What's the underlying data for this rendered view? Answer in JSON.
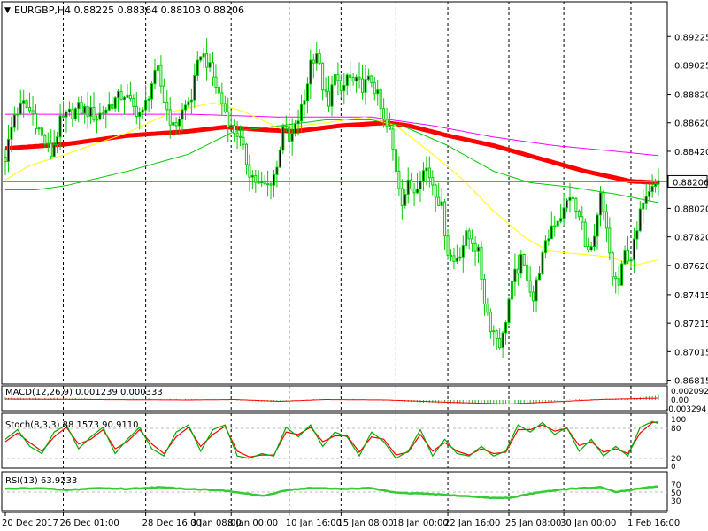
{
  "chart_data": {
    "type": "candlestick",
    "symbol_header": {
      "triangle": "▼",
      "text": "EURGBP,H4  0.88225 0.88364 0.88103 0.88206"
    },
    "price_axis": {
      "ylim": [
        0.868,
        0.8945
      ],
      "tick_labels": [
        "0.89225",
        "0.89025",
        "0.88820",
        "0.88620",
        "0.88420",
        "0.88020",
        "0.87820",
        "0.87620",
        "0.87415",
        "0.87215",
        "0.87015",
        "0.86815"
      ],
      "tick_values": [
        0.89225,
        0.89025,
        0.8882,
        0.8862,
        0.8842,
        0.8802,
        0.8782,
        0.8762,
        0.87415,
        0.87215,
        0.87015,
        0.86815
      ],
      "current_price_label": "0.88206",
      "current_price": 0.88206
    },
    "x_axis": {
      "bar_count": 215,
      "date_labels": [
        {
          "label": "20 Dec 2017",
          "bar": 0
        },
        {
          "label": "26 Dec 01:00",
          "bar": 19
        },
        {
          "label": "28 Dec 16:00",
          "bar": 46
        },
        {
          "label": "3 Jan 08:00",
          "bar": 62
        },
        {
          "label": "8 Jan 00:00",
          "bar": 74
        },
        {
          "label": "10 Jan 16:00",
          "bar": 93
        },
        {
          "label": "15 Jan 08:00",
          "bar": 110
        },
        {
          "label": "18 Jan 00:00",
          "bar": 128
        },
        {
          "label": "22 Jan 16:00",
          "bar": 145
        },
        {
          "label": "25 Jan 08:00",
          "bar": 165
        },
        {
          "label": "30 Jan 00:00",
          "bar": 183
        },
        {
          "label": "1 Feb 16:00",
          "bar": 205
        }
      ],
      "period_separators": [
        19,
        46,
        74,
        93,
        110,
        128,
        145,
        165,
        183,
        205
      ]
    },
    "price_anchors": [
      [
        0,
        0.8838
      ],
      [
        3,
        0.8868
      ],
      [
        6,
        0.8875
      ],
      [
        9,
        0.8868
      ],
      [
        12,
        0.8852
      ],
      [
        15,
        0.884
      ],
      [
        18,
        0.8862
      ],
      [
        21,
        0.8868
      ],
      [
        24,
        0.8872
      ],
      [
        27,
        0.887
      ],
      [
        30,
        0.8866
      ],
      [
        33,
        0.8872
      ],
      [
        36,
        0.8878
      ],
      [
        39,
        0.8882
      ],
      [
        42,
        0.8872
      ],
      [
        45,
        0.8868
      ],
      [
        48,
        0.889
      ],
      [
        50,
        0.8898
      ],
      [
        52,
        0.8878
      ],
      [
        55,
        0.8858
      ],
      [
        58,
        0.887
      ],
      [
        61,
        0.888
      ],
      [
        64,
        0.8912
      ],
      [
        66,
        0.8905
      ],
      [
        69,
        0.8888
      ],
      [
        72,
        0.887
      ],
      [
        74,
        0.8858
      ],
      [
        76,
        0.8855
      ],
      [
        78,
        0.8842
      ],
      [
        80,
        0.8828
      ],
      [
        83,
        0.8818
      ],
      [
        86,
        0.8818
      ],
      [
        89,
        0.883
      ],
      [
        91,
        0.8862
      ],
      [
        93,
        0.8848
      ],
      [
        95,
        0.8858
      ],
      [
        98,
        0.8878
      ],
      [
        100,
        0.8905
      ],
      [
        102,
        0.8912
      ],
      [
        104,
        0.8888
      ],
      [
        106,
        0.8872
      ],
      [
        108,
        0.89
      ],
      [
        110,
        0.888
      ],
      [
        112,
        0.8895
      ],
      [
        114,
        0.889
      ],
      [
        117,
        0.8888
      ],
      [
        120,
        0.8892
      ],
      [
        122,
        0.888
      ],
      [
        124,
        0.8862
      ],
      [
        126,
        0.8855
      ],
      [
        128,
        0.883
      ],
      [
        130,
        0.8808
      ],
      [
        132,
        0.8818
      ],
      [
        134,
        0.8815
      ],
      [
        136,
        0.8826
      ],
      [
        138,
        0.883
      ],
      [
        140,
        0.882
      ],
      [
        143,
        0.8802
      ],
      [
        145,
        0.8772
      ],
      [
        147,
        0.8765
      ],
      [
        149,
        0.8772
      ],
      [
        151,
        0.8782
      ],
      [
        153,
        0.878
      ],
      [
        155,
        0.877
      ],
      [
        157,
        0.8738
      ],
      [
        159,
        0.872
      ],
      [
        161,
        0.8712
      ],
      [
        162,
        0.8708
      ],
      [
        163,
        0.8712
      ],
      [
        165,
        0.8738
      ],
      [
        167,
        0.8755
      ],
      [
        169,
        0.8765
      ],
      [
        171,
        0.8755
      ],
      [
        173,
        0.8738
      ],
      [
        175,
        0.876
      ],
      [
        177,
        0.8775
      ],
      [
        179,
        0.879
      ],
      [
        181,
        0.8795
      ],
      [
        183,
        0.88
      ],
      [
        185,
        0.8812
      ],
      [
        187,
        0.88
      ],
      [
        189,
        0.879
      ],
      [
        191,
        0.877
      ],
      [
        193,
        0.8778
      ],
      [
        195,
        0.881
      ],
      [
        197,
        0.8785
      ],
      [
        199,
        0.8755
      ],
      [
        201,
        0.8748
      ],
      [
        203,
        0.877
      ],
      [
        205,
        0.8768
      ],
      [
        207,
        0.8785
      ],
      [
        209,
        0.881
      ],
      [
        211,
        0.8818
      ],
      [
        212,
        0.8822
      ],
      [
        214,
        0.8821
      ]
    ],
    "moving_averages": [
      {
        "name": "MA red (bold)",
        "color": "#ff0000",
        "width": 5,
        "points": [
          [
            0,
            0.8844
          ],
          [
            20,
            0.8847
          ],
          [
            40,
            0.8853
          ],
          [
            60,
            0.8856
          ],
          [
            72,
            0.8859
          ],
          [
            85,
            0.8857
          ],
          [
            95,
            0.8856
          ],
          [
            110,
            0.886
          ],
          [
            125,
            0.8862
          ],
          [
            132,
            0.886
          ],
          [
            145,
            0.8853
          ],
          [
            160,
            0.8846
          ],
          [
            175,
            0.8837
          ],
          [
            190,
            0.8828
          ],
          [
            205,
            0.8821
          ],
          [
            214,
            0.882
          ]
        ]
      },
      {
        "name": "MA magenta",
        "color": "#ff00ff",
        "width": 1,
        "points": [
          [
            0,
            0.8868
          ],
          [
            30,
            0.8868
          ],
          [
            60,
            0.8868
          ],
          [
            90,
            0.8866
          ],
          [
            120,
            0.8866
          ],
          [
            140,
            0.886
          ],
          [
            160,
            0.8852
          ],
          [
            180,
            0.8846
          ],
          [
            200,
            0.8842
          ],
          [
            214,
            0.8839
          ]
        ]
      },
      {
        "name": "MA green",
        "color": "#00cc00",
        "width": 1,
        "points": [
          [
            0,
            0.8815
          ],
          [
            10,
            0.8815
          ],
          [
            20,
            0.8818
          ],
          [
            40,
            0.8828
          ],
          [
            60,
            0.884
          ],
          [
            75,
            0.8856
          ],
          [
            90,
            0.886
          ],
          [
            105,
            0.8864
          ],
          [
            120,
            0.8864
          ],
          [
            130,
            0.886
          ],
          [
            145,
            0.8846
          ],
          [
            160,
            0.8828
          ],
          [
            172,
            0.882
          ],
          [
            185,
            0.8817
          ],
          [
            200,
            0.8812
          ],
          [
            214,
            0.8806
          ]
        ]
      },
      {
        "name": "MA yellow",
        "color": "#ffff00",
        "width": 1,
        "points": [
          [
            0,
            0.8822
          ],
          [
            8,
            0.8832
          ],
          [
            20,
            0.884
          ],
          [
            40,
            0.8855
          ],
          [
            55,
            0.887
          ],
          [
            68,
            0.8876
          ],
          [
            78,
            0.887
          ],
          [
            90,
            0.8858
          ],
          [
            105,
            0.8862
          ],
          [
            118,
            0.8866
          ],
          [
            128,
            0.886
          ],
          [
            140,
            0.884
          ],
          [
            150,
            0.8822
          ],
          [
            160,
            0.88
          ],
          [
            170,
            0.8782
          ],
          [
            178,
            0.8772
          ],
          [
            188,
            0.877
          ],
          [
            198,
            0.8768
          ],
          [
            206,
            0.8762
          ],
          [
            214,
            0.8766
          ]
        ]
      }
    ],
    "macd": {
      "label": "MACD(12,26,9) 0.001239 0.000333",
      "right_labels": [
        "0.002092",
        "0.00",
        "-0.003294"
      ],
      "hist_anchors": [
        [
          0,
          0.25
        ],
        [
          15,
          0.2
        ],
        [
          30,
          0.15
        ],
        [
          50,
          0.1
        ],
        [
          70,
          0.05
        ],
        [
          85,
          -0.2
        ],
        [
          100,
          0.05
        ],
        [
          115,
          0.1
        ],
        [
          125,
          -0.05
        ],
        [
          140,
          -0.3
        ],
        [
          155,
          -0.45
        ],
        [
          165,
          -0.55
        ],
        [
          175,
          -0.3
        ],
        [
          185,
          0.05
        ],
        [
          195,
          0.1
        ],
        [
          205,
          0.15
        ],
        [
          214,
          0.6
        ]
      ],
      "signal_anchors": [
        [
          0,
          0.1
        ],
        [
          30,
          0.05
        ],
        [
          60,
          0.0
        ],
        [
          75,
          0.05
        ],
        [
          90,
          -0.15
        ],
        [
          105,
          0.05
        ],
        [
          125,
          0.0
        ],
        [
          145,
          -0.25
        ],
        [
          165,
          -0.45
        ],
        [
          180,
          -0.2
        ],
        [
          195,
          0.05
        ],
        [
          214,
          0.2
        ]
      ]
    },
    "stochastic": {
      "label": "Stoch(8,3,3) 88.1573 90.9110",
      "right_labels": [
        "100",
        "80",
        "20",
        "0"
      ],
      "levels": [
        80,
        20
      ],
      "k_anchors": [
        [
          0,
          55
        ],
        [
          4,
          75
        ],
        [
          8,
          40
        ],
        [
          12,
          25
        ],
        [
          16,
          70
        ],
        [
          20,
          85
        ],
        [
          24,
          35
        ],
        [
          28,
          60
        ],
        [
          32,
          80
        ],
        [
          36,
          25
        ],
        [
          40,
          55
        ],
        [
          44,
          80
        ],
        [
          48,
          35
        ],
        [
          52,
          20
        ],
        [
          56,
          70
        ],
        [
          60,
          85
        ],
        [
          64,
          30
        ],
        [
          68,
          75
        ],
        [
          72,
          85
        ],
        [
          76,
          20
        ],
        [
          80,
          15
        ],
        [
          84,
          25
        ],
        [
          88,
          20
        ],
        [
          92,
          80
        ],
        [
          96,
          60
        ],
        [
          100,
          85
        ],
        [
          104,
          40
        ],
        [
          108,
          70
        ],
        [
          112,
          60
        ],
        [
          116,
          20
        ],
        [
          120,
          70
        ],
        [
          124,
          50
        ],
        [
          128,
          15
        ],
        [
          132,
          30
        ],
        [
          136,
          75
        ],
        [
          140,
          20
        ],
        [
          144,
          55
        ],
        [
          148,
          25
        ],
        [
          152,
          20
        ],
        [
          156,
          40
        ],
        [
          160,
          20
        ],
        [
          164,
          30
        ],
        [
          168,
          85
        ],
        [
          172,
          70
        ],
        [
          176,
          90
        ],
        [
          180,
          65
        ],
        [
          184,
          80
        ],
        [
          188,
          30
        ],
        [
          192,
          55
        ],
        [
          196,
          20
        ],
        [
          200,
          40
        ],
        [
          204,
          20
        ],
        [
          208,
          80
        ],
        [
          212,
          92
        ],
        [
          214,
          88
        ]
      ],
      "d_anchors": [
        [
          0,
          50
        ],
        [
          4,
          68
        ],
        [
          8,
          48
        ],
        [
          12,
          30
        ],
        [
          16,
          60
        ],
        [
          20,
          80
        ],
        [
          24,
          45
        ],
        [
          28,
          55
        ],
        [
          32,
          75
        ],
        [
          36,
          35
        ],
        [
          40,
          50
        ],
        [
          44,
          75
        ],
        [
          48,
          45
        ],
        [
          52,
          25
        ],
        [
          56,
          60
        ],
        [
          60,
          80
        ],
        [
          64,
          40
        ],
        [
          68,
          65
        ],
        [
          72,
          82
        ],
        [
          76,
          30
        ],
        [
          80,
          18
        ],
        [
          84,
          22
        ],
        [
          88,
          22
        ],
        [
          92,
          70
        ],
        [
          96,
          65
        ],
        [
          100,
          80
        ],
        [
          104,
          50
        ],
        [
          108,
          62
        ],
        [
          112,
          62
        ],
        [
          116,
          28
        ],
        [
          120,
          60
        ],
        [
          124,
          55
        ],
        [
          128,
          22
        ],
        [
          132,
          28
        ],
        [
          136,
          65
        ],
        [
          140,
          30
        ],
        [
          144,
          48
        ],
        [
          148,
          30
        ],
        [
          152,
          22
        ],
        [
          156,
          35
        ],
        [
          160,
          25
        ],
        [
          164,
          28
        ],
        [
          168,
          75
        ],
        [
          172,
          75
        ],
        [
          176,
          85
        ],
        [
          180,
          72
        ],
        [
          184,
          78
        ],
        [
          188,
          42
        ],
        [
          192,
          50
        ],
        [
          196,
          28
        ],
        [
          200,
          35
        ],
        [
          204,
          25
        ],
        [
          208,
          68
        ],
        [
          212,
          90
        ],
        [
          214,
          91
        ]
      ]
    },
    "rsi": {
      "label": "RSI(13) 63.9233",
      "right_labels": [
        "70",
        "50",
        "30"
      ],
      "level": 50,
      "anchors": [
        [
          0,
          58
        ],
        [
          10,
          60
        ],
        [
          20,
          55
        ],
        [
          30,
          60
        ],
        [
          40,
          58
        ],
        [
          50,
          62
        ],
        [
          60,
          58
        ],
        [
          70,
          55
        ],
        [
          80,
          45
        ],
        [
          85,
          40
        ],
        [
          92,
          55
        ],
        [
          100,
          60
        ],
        [
          110,
          58
        ],
        [
          120,
          60
        ],
        [
          128,
          48
        ],
        [
          140,
          45
        ],
        [
          150,
          40
        ],
        [
          160,
          35
        ],
        [
          165,
          35
        ],
        [
          175,
          50
        ],
        [
          185,
          58
        ],
        [
          195,
          62
        ],
        [
          200,
          50
        ],
        [
          205,
          55
        ],
        [
          210,
          62
        ],
        [
          214,
          64
        ]
      ]
    }
  }
}
